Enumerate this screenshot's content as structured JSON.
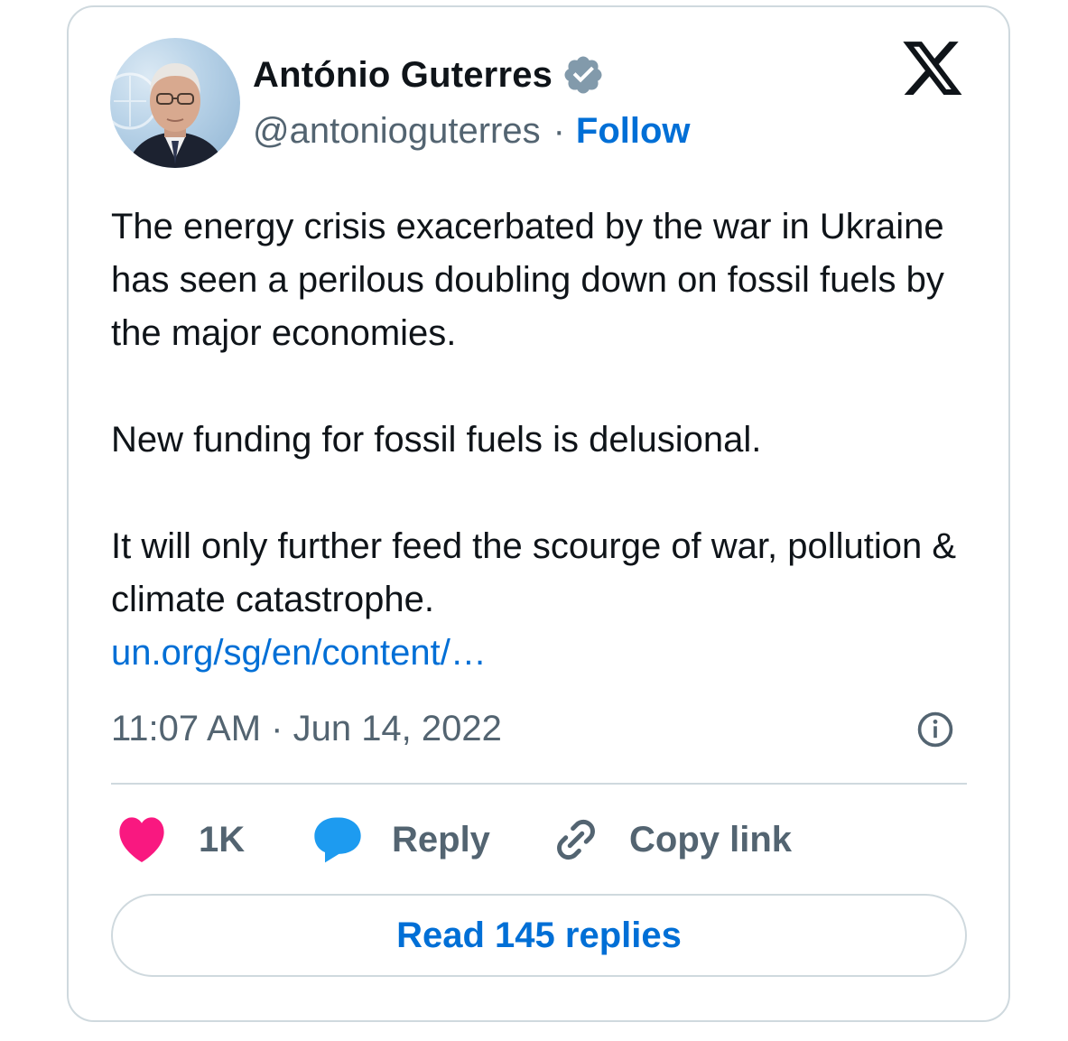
{
  "author": {
    "name": "António Guterres",
    "handle": "@antonioguterres",
    "separator": "·",
    "follow_label": "Follow",
    "verified_color": "#829aab"
  },
  "tweet": {
    "paragraphs": [
      "The energy crisis exacerbated by the war in Ukraine has seen a perilous doubling down on fossil fuels by the major economies.",
      "New funding for fossil fuels is delusional.",
      "It will only further feed the scourge of war, pollution & climate catastrophe."
    ],
    "link_text": "un.org/sg/en/content/…",
    "timestamp": "11:07 AM · Jun 14, 2022"
  },
  "actions": {
    "like_count": "1K",
    "reply_label": "Reply",
    "copy_label": "Copy link"
  },
  "read_replies_label": "Read 145 replies",
  "colors": {
    "like": "#f91880",
    "reply": "#1d9bf0",
    "link": "#006fd6",
    "muted": "#536471",
    "border": "#cfd9de"
  },
  "icons": [
    "x-logo-icon",
    "verified-badge-icon",
    "info-icon",
    "heart-icon",
    "speech-bubble-icon",
    "link-icon"
  ]
}
